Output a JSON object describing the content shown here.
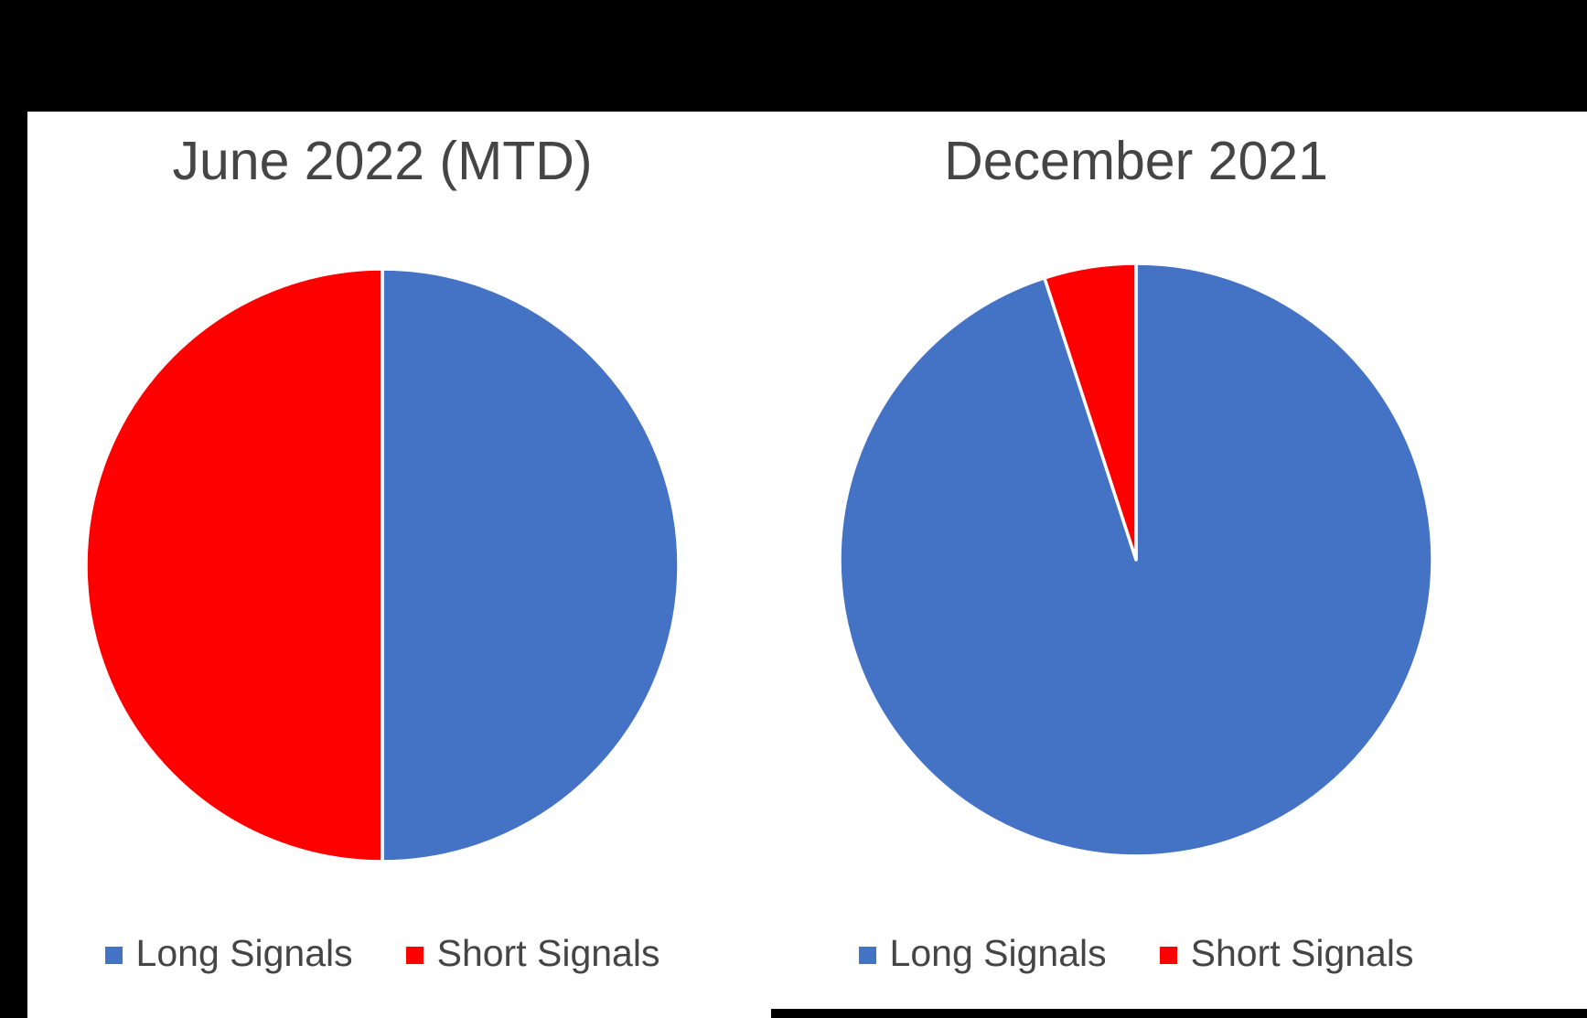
{
  "page": {
    "background_color": "#000000",
    "panel_background_color": "#FFFFFF",
    "slice_border_color": "#FFFFFF",
    "text_color": "#454545"
  },
  "colors": {
    "long_signals": "#4472C4",
    "short_signals": "#FF0000"
  },
  "chart_data": [
    {
      "id": "june-2022-mtd",
      "type": "pie",
      "title": "June 2022 (MTD)",
      "categories": [
        "Long Signals",
        "Short Signals"
      ],
      "values": [
        50,
        50
      ],
      "unit": "percent",
      "colors": [
        "#4472C4",
        "#FF0000"
      ],
      "start_angle_deg": 0,
      "direction": "clockwise",
      "legend_position": "bottom",
      "data_labels": "none"
    },
    {
      "id": "december-2021",
      "type": "pie",
      "title": "December 2021",
      "categories": [
        "Long Signals",
        "Short Signals"
      ],
      "values": [
        95,
        5
      ],
      "unit": "percent",
      "colors": [
        "#4472C4",
        "#FF0000"
      ],
      "start_angle_deg": 0,
      "direction": "clockwise",
      "legend_position": "bottom",
      "data_labels": "none"
    }
  ]
}
